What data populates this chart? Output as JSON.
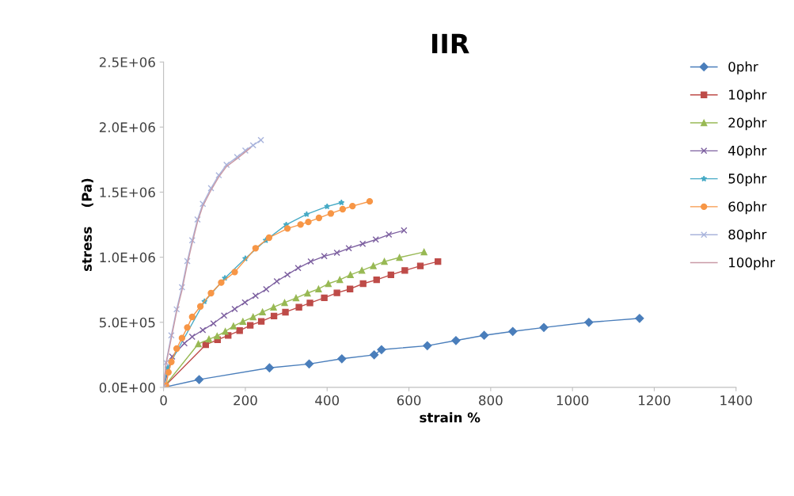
{
  "chart_data": {
    "type": "line",
    "title": "IIR",
    "xlabel": "strain %",
    "ylabel": "stress    (Pa)",
    "xlim": [
      0,
      1400
    ],
    "xticks": [
      0,
      200,
      400,
      600,
      800,
      1000,
      1200,
      1400
    ],
    "ylim": [
      0,
      2500000
    ],
    "yticks": [
      {
        "value": 0,
        "label": "0.0E+00"
      },
      {
        "value": 500000,
        "label": "5.0E+05"
      },
      {
        "value": 1000000,
        "label": "1.0E+06"
      },
      {
        "value": 1500000,
        "label": "1.5E+06"
      },
      {
        "value": 2000000,
        "label": "2.0E+06"
      },
      {
        "value": 2500000,
        "label": "2.5E+06"
      }
    ],
    "grid": false,
    "legend": "right",
    "line_style": "solid",
    "series": [
      {
        "name": "0phr",
        "color": "#4a7ebb",
        "marker": "diamond",
        "x": [
          0,
          87,
          259,
          356,
          436,
          515,
          533,
          645,
          715,
          784,
          854,
          930,
          1040,
          1164
        ],
        "values": [
          0,
          60000,
          150000,
          180000,
          220000,
          250000,
          290000,
          320000,
          360000,
          400000,
          430000,
          460000,
          500000,
          530000
        ]
      },
      {
        "name": "10phr",
        "color": "#be4b48",
        "marker": "square",
        "x": [
          0,
          103,
          132,
          158,
          186,
          212,
          239,
          270,
          298,
          331,
          358,
          393,
          424,
          456,
          488,
          521,
          556,
          590,
          628,
          671
        ],
        "values": [
          0,
          328000,
          366000,
          399000,
          436000,
          477000,
          507000,
          548000,
          578000,
          616000,
          649000,
          688000,
          726000,
          756000,
          797000,
          827000,
          865000,
          898000,
          933000,
          967000
        ]
      },
      {
        "name": "20phr",
        "color": "#98b954",
        "marker": "triangle",
        "x": [
          0,
          85,
          111,
          131,
          151,
          171,
          194,
          219,
          242,
          269,
          296,
          324,
          352,
          379,
          403,
          431,
          457,
          485,
          513,
          540,
          577,
          637
        ],
        "values": [
          0,
          334000,
          370000,
          394000,
          430000,
          471000,
          506000,
          541000,
          579000,
          616000,
          651000,
          687000,
          724000,
          756000,
          797000,
          827000,
          865000,
          898000,
          933000,
          967000,
          998000,
          1040000
        ]
      },
      {
        "name": "40phr",
        "color": "#7d60a0",
        "marker": "cross",
        "x": [
          0,
          21,
          51,
          70,
          96,
          122,
          148,
          174,
          199,
          225,
          251,
          277,
          303,
          329,
          360,
          393,
          424,
          453,
          487,
          519,
          551,
          588
        ],
        "values": [
          0,
          237000,
          339000,
          389000,
          440000,
          491000,
          552000,
          602000,
          653000,
          704000,
          754000,
          815000,
          866000,
          917000,
          967000,
          1008000,
          1034000,
          1069000,
          1103000,
          1136000,
          1174000,
          1206000
        ]
      },
      {
        "name": "50phr",
        "color": "#46aac5",
        "marker": "star",
        "x": [
          0,
          10,
          100,
          150,
          200,
          250,
          300,
          350,
          400,
          435
        ],
        "values": [
          0,
          150000,
          660000,
          840000,
          990000,
          1130000,
          1250000,
          1330000,
          1390000,
          1420000
        ]
      },
      {
        "name": "60phr",
        "color": "#f79646",
        "marker": "circle",
        "x": [
          0,
          6,
          12,
          19,
          32,
          45,
          58,
          70,
          90,
          116,
          141,
          174,
          225,
          258,
          303,
          335,
          354,
          380,
          409,
          438,
          462,
          504
        ],
        "values": [
          0,
          14000,
          116000,
          196000,
          298000,
          379000,
          460000,
          541000,
          622000,
          724000,
          805000,
          886000,
          1069000,
          1150000,
          1221000,
          1251000,
          1271000,
          1302000,
          1336000,
          1369000,
          1393000,
          1429000
        ]
      },
      {
        "name": "80phr",
        "color": "#a9b4dc",
        "marker": "cross",
        "x": [
          0,
          6,
          19,
          32,
          45,
          58,
          70,
          83,
          96,
          116,
          135,
          154,
          180,
          200,
          219,
          238
        ],
        "values": [
          0,
          190000,
          400000,
          600000,
          770000,
          970000,
          1130000,
          1290000,
          1410000,
          1530000,
          1630000,
          1710000,
          1770000,
          1820000,
          1860000,
          1900000
        ]
      },
      {
        "name": "100phr",
        "color": "#c99aa6",
        "marker": "none",
        "x": [
          0,
          6,
          19,
          32,
          45,
          58,
          70,
          83,
          96,
          116,
          135,
          154,
          180,
          212
        ],
        "values": [
          0,
          176000,
          379000,
          582000,
          744000,
          947000,
          1109000,
          1271000,
          1393000,
          1515000,
          1616000,
          1697000,
          1758000,
          1839000
        ]
      }
    ]
  }
}
